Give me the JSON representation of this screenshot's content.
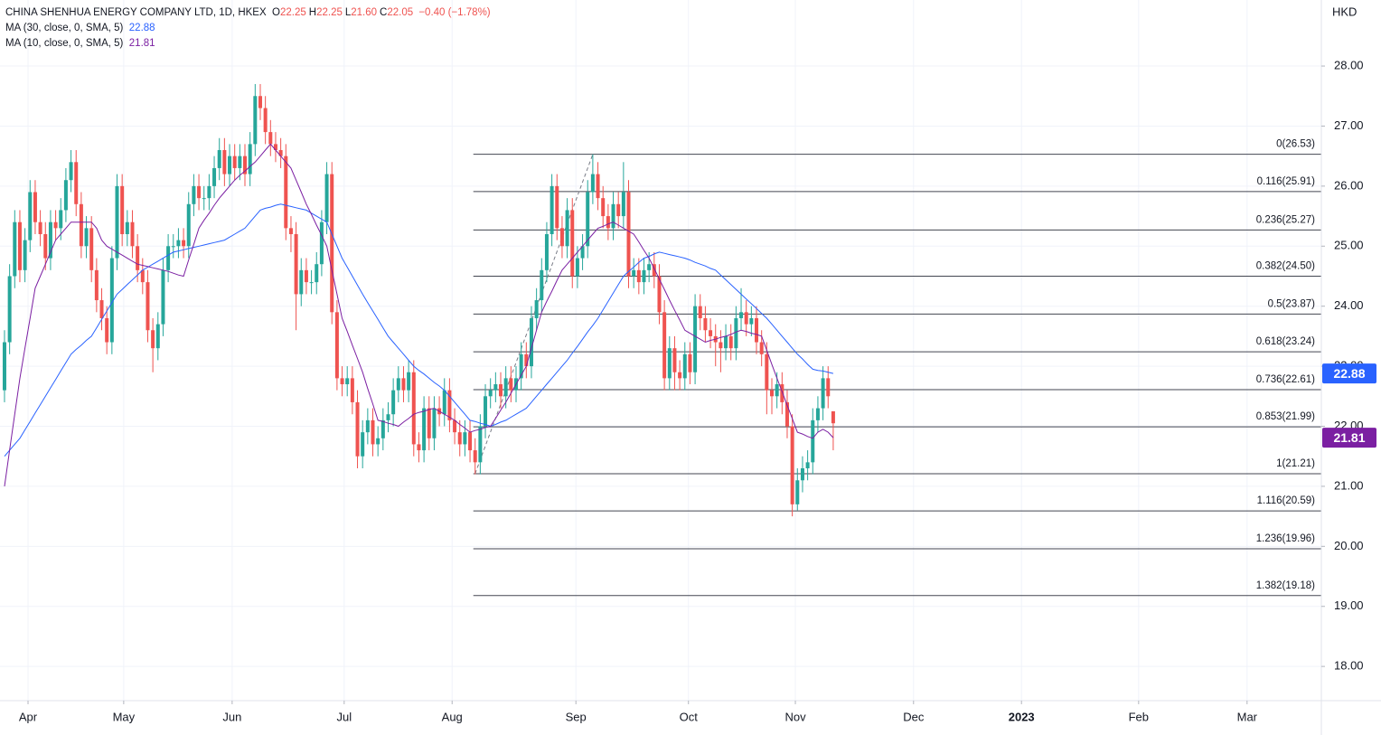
{
  "chart_data": {
    "type": "candlestick",
    "title": "CHINA SHENHUA ENERGY COMPANY LTD, 1D, HKEX",
    "ohlc_legend": [
      {
        "key": "O",
        "value": "22.25"
      },
      {
        "key": "H",
        "value": "22.25"
      },
      {
        "key": "L",
        "value": "21.60"
      },
      {
        "key": "C",
        "value": "22.05"
      }
    ],
    "change": "−0.40 (−1.78%)",
    "y_axis_unit": "HKD",
    "up_color": "#26a69a",
    "down_color": "#ef5350",
    "grid": true,
    "open": [
      22.6,
      23.4,
      24.5,
      25.4,
      24.6,
      25.1,
      25.9,
      25.4,
      25.2,
      24.8,
      25.4,
      25.3,
      25.6,
      26.1,
      26.4,
      25.7,
      25.0,
      25.3,
      24.6,
      24.1,
      23.8,
      23.4,
      24.8,
      26.0,
      25.2,
      25.4,
      25.0,
      24.6,
      24.4,
      23.6,
      23.3,
      23.7,
      24.6,
      25.0,
      25.0,
      25.1,
      25.0,
      25.7,
      26.0,
      25.8,
      25.8,
      26.0,
      26.3,
      26.6,
      26.2,
      26.5,
      26.3,
      26.5,
      26.2,
      26.7,
      27.5,
      27.3,
      26.9,
      26.7,
      26.6,
      26.5,
      25.3,
      25.2,
      24.2,
      24.6,
      24.4,
      24.4,
      24.7,
      25.4,
      26.2,
      23.9,
      22.8,
      22.7,
      22.8,
      22.4,
      21.5,
      21.9,
      22.1,
      21.7,
      21.8,
      22.1,
      22.2,
      22.6,
      22.8,
      22.6,
      22.9,
      21.7,
      21.6,
      22.3,
      21.8,
      22.3,
      22.2,
      22.6,
      22.1,
      21.9,
      21.7,
      21.9,
      21.6,
      21.4,
      22.0,
      22.5,
      22.6,
      22.7,
      22.5,
      22.8,
      22.6,
      22.8,
      23.2,
      23.0,
      23.8,
      24.1,
      24.6,
      25.2,
      26.0,
      25.3,
      25.0,
      25.6,
      24.5,
      24.8,
      25.0,
      25.9,
      26.2,
      25.8,
      25.5,
      25.3,
      25.7,
      25.5,
      25.9,
      24.5,
      24.6,
      24.4,
      24.6,
      24.7,
      24.5,
      23.9,
      22.8,
      23.3,
      22.9,
      22.8,
      23.2,
      22.9,
      24.0,
      23.8,
      23.6,
      23.5,
      23.4,
      23.3,
      23.5,
      23.3,
      23.8,
      23.9,
      23.7,
      23.8,
      23.4,
      23.2,
      22.6,
      22.5,
      22.7,
      22.4,
      22.0,
      20.7,
      21.1,
      21.3,
      21.4,
      22.1,
      22.3,
      22.8,
      22.25
    ],
    "high": [
      23.6,
      24.7,
      25.6,
      25.6,
      25.3,
      26.1,
      26.1,
      25.6,
      25.4,
      25.6,
      25.6,
      25.8,
      26.3,
      26.6,
      26.6,
      25.9,
      25.5,
      25.5,
      24.8,
      24.3,
      24.0,
      25.0,
      26.2,
      26.2,
      25.6,
      25.6,
      25.2,
      24.8,
      24.6,
      23.8,
      23.9,
      24.8,
      25.2,
      25.2,
      25.3,
      25.3,
      25.9,
      26.2,
      26.2,
      26.0,
      26.2,
      26.5,
      26.8,
      26.8,
      26.7,
      26.7,
      26.7,
      26.7,
      26.9,
      27.7,
      27.7,
      27.5,
      27.1,
      26.9,
      26.8,
      26.7,
      25.5,
      25.4,
      24.8,
      24.8,
      24.6,
      24.9,
      25.6,
      26.4,
      26.4,
      24.1,
      23.0,
      23.0,
      23.0,
      22.6,
      22.1,
      22.3,
      22.3,
      22.0,
      22.3,
      22.4,
      22.8,
      23.0,
      23.0,
      23.1,
      23.1,
      21.9,
      22.5,
      22.5,
      22.5,
      22.5,
      22.8,
      22.8,
      22.3,
      22.1,
      22.1,
      22.1,
      21.8,
      22.2,
      22.7,
      22.8,
      22.9,
      22.9,
      23.0,
      23.0,
      23.0,
      23.4,
      23.4,
      24.0,
      24.3,
      24.8,
      25.4,
      26.2,
      26.2,
      25.5,
      25.8,
      25.8,
      25.0,
      25.2,
      26.1,
      26.53,
      26.4,
      26.0,
      25.7,
      25.9,
      25.9,
      26.4,
      26.1,
      24.8,
      24.8,
      24.8,
      24.9,
      24.9,
      24.7,
      24.1,
      23.5,
      23.5,
      23.1,
      23.4,
      23.4,
      24.2,
      24.2,
      24.0,
      23.8,
      23.7,
      23.6,
      23.7,
      23.7,
      24.0,
      24.3,
      24.1,
      24.0,
      24.0,
      23.6,
      23.4,
      22.8,
      22.9,
      22.9,
      22.6,
      22.2,
      21.3,
      21.5,
      21.6,
      22.3,
      22.5,
      23.0,
      23.0,
      22.25
    ],
    "low": [
      22.4,
      23.2,
      24.3,
      24.4,
      24.4,
      24.9,
      25.2,
      25.0,
      24.6,
      24.6,
      25.1,
      25.1,
      25.4,
      25.9,
      25.5,
      24.8,
      24.8,
      24.4,
      23.9,
      23.6,
      23.2,
      23.2,
      24.6,
      25.0,
      25.0,
      24.8,
      24.4,
      24.2,
      23.4,
      22.9,
      23.1,
      23.5,
      24.4,
      24.8,
      24.8,
      24.8,
      24.8,
      25.5,
      25.6,
      25.6,
      25.6,
      25.8,
      26.1,
      26.0,
      26.0,
      26.1,
      26.1,
      26.0,
      26.0,
      26.5,
      27.1,
      26.7,
      26.5,
      26.4,
      26.3,
      25.1,
      24.9,
      23.6,
      24.0,
      24.2,
      24.2,
      24.2,
      24.5,
      25.2,
      23.7,
      22.6,
      22.5,
      22.5,
      22.2,
      21.3,
      21.3,
      21.7,
      21.5,
      21.5,
      21.6,
      21.9,
      22.0,
      22.4,
      22.4,
      22.4,
      21.5,
      21.4,
      21.4,
      21.6,
      21.6,
      22.0,
      22.0,
      21.9,
      21.7,
      21.5,
      21.5,
      21.4,
      21.2,
      21.2,
      21.8,
      22.3,
      22.4,
      22.3,
      22.3,
      22.4,
      22.4,
      22.6,
      22.8,
      22.8,
      23.6,
      23.9,
      24.4,
      25.0,
      25.1,
      24.8,
      24.8,
      24.3,
      24.3,
      24.6,
      24.8,
      25.7,
      25.6,
      25.3,
      25.1,
      25.1,
      25.3,
      25.3,
      24.3,
      24.3,
      24.2,
      24.2,
      24.4,
      24.3,
      23.7,
      22.6,
      22.6,
      22.6,
      22.6,
      22.6,
      22.7,
      22.7,
      23.6,
      23.4,
      23.3,
      23.0,
      22.9,
      23.1,
      23.1,
      23.1,
      23.6,
      23.5,
      23.5,
      23.2,
      23.0,
      22.2,
      22.2,
      22.3,
      22.2,
      21.8,
      20.5,
      20.6,
      20.9,
      21.1,
      21.2,
      21.9,
      22.1,
      22.3,
      21.6
    ],
    "close": [
      23.4,
      24.5,
      25.4,
      24.6,
      25.1,
      25.9,
      25.4,
      25.2,
      24.8,
      25.4,
      25.3,
      25.6,
      26.1,
      26.4,
      25.7,
      25.0,
      25.3,
      24.6,
      24.1,
      23.8,
      23.4,
      24.8,
      26.0,
      25.2,
      25.4,
      25.0,
      24.6,
      24.4,
      23.6,
      23.3,
      23.7,
      24.6,
      25.0,
      25.0,
      25.1,
      25.0,
      25.7,
      26.0,
      25.8,
      25.8,
      26.0,
      26.3,
      26.6,
      26.2,
      26.5,
      26.3,
      26.5,
      26.2,
      26.7,
      27.5,
      27.3,
      26.9,
      26.7,
      26.6,
      26.5,
      25.3,
      25.2,
      24.2,
      24.6,
      24.4,
      24.4,
      24.7,
      25.4,
      26.2,
      23.9,
      22.8,
      22.7,
      22.8,
      22.4,
      21.5,
      21.9,
      22.1,
      21.7,
      21.8,
      22.1,
      22.2,
      22.6,
      22.8,
      22.6,
      22.9,
      21.7,
      21.6,
      22.3,
      21.8,
      22.3,
      22.2,
      22.6,
      22.1,
      21.9,
      21.7,
      21.9,
      21.6,
      21.4,
      22.0,
      22.5,
      22.6,
      22.7,
      22.5,
      22.8,
      22.6,
      22.8,
      23.2,
      23.0,
      23.8,
      24.1,
      24.6,
      25.2,
      26.0,
      25.3,
      25.0,
      25.6,
      24.5,
      24.8,
      25.0,
      25.9,
      26.2,
      25.8,
      25.5,
      25.3,
      25.7,
      25.5,
      25.9,
      24.5,
      24.6,
      24.4,
      24.6,
      24.7,
      24.5,
      23.9,
      22.8,
      23.3,
      22.9,
      22.8,
      23.2,
      22.9,
      24.0,
      23.8,
      23.6,
      23.5,
      23.4,
      23.3,
      23.5,
      23.3,
      23.8,
      23.9,
      23.7,
      23.8,
      23.4,
      23.2,
      22.6,
      22.5,
      22.7,
      22.4,
      22.0,
      20.7,
      21.1,
      21.3,
      21.4,
      22.1,
      22.3,
      22.8,
      22.5,
      22.05
    ],
    "series": [
      {
        "name": "MA (30, close, 0, SMA, 5)",
        "color": "#2962ff",
        "last_label": "22.88",
        "values": [
          21.5,
          21.6,
          21.7,
          21.8,
          21.94,
          22.08,
          22.22,
          22.36,
          22.5,
          22.64,
          22.78,
          22.92,
          23.06,
          23.2,
          23.28,
          23.35,
          23.43,
          23.5,
          23.64,
          23.78,
          23.92,
          24.06,
          24.2,
          24.28,
          24.36,
          24.44,
          24.52,
          24.6,
          24.65,
          24.7,
          24.75,
          24.8,
          24.85,
          24.9,
          24.92,
          24.94,
          24.96,
          24.98,
          25.0,
          25.02,
          25.04,
          25.06,
          25.08,
          25.1,
          25.15,
          25.2,
          25.25,
          25.3,
          25.4,
          25.5,
          25.6,
          25.63,
          25.65,
          25.68,
          25.7,
          25.68,
          25.66,
          25.64,
          25.62,
          25.6,
          25.55,
          25.5,
          25.45,
          25.4,
          25.2,
          25.0,
          24.8,
          24.65,
          24.5,
          24.35,
          24.2,
          24.06,
          23.92,
          23.78,
          23.64,
          23.5,
          23.4,
          23.3,
          23.2,
          23.1,
          23.0,
          22.93,
          22.87,
          22.8,
          22.73,
          22.67,
          22.6,
          22.5,
          22.4,
          22.3,
          22.2,
          22.1,
          22.08,
          22.05,
          22.03,
          22.0,
          22.03,
          22.07,
          22.1,
          22.15,
          22.2,
          22.25,
          22.3,
          22.4,
          22.5,
          22.6,
          22.7,
          22.8,
          22.9,
          23.0,
          23.1,
          23.22,
          23.33,
          23.45,
          23.57,
          23.68,
          23.8,
          23.94,
          24.08,
          24.22,
          24.36,
          24.5,
          24.58,
          24.65,
          24.73,
          24.8,
          24.83,
          24.87,
          24.9,
          24.88,
          24.86,
          24.84,
          24.82,
          24.8,
          24.77,
          24.73,
          24.7,
          24.67,
          24.63,
          24.6,
          24.52,
          24.44,
          24.36,
          24.28,
          24.2,
          24.12,
          24.04,
          23.96,
          23.88,
          23.8,
          23.7,
          23.6,
          23.5,
          23.4,
          23.3,
          23.2,
          23.12,
          23.03,
          22.95,
          22.93,
          22.92,
          22.9,
          22.88
        ]
      },
      {
        "name": "MA (10, close, 0, SMA, 5)",
        "color": "#7b1fa2",
        "last_label": "21.81",
        "values": [
          21.0,
          21.6,
          22.2,
          22.8,
          23.3,
          23.8,
          24.3,
          24.5,
          24.7,
          24.9,
          25.1,
          25.2,
          25.3,
          25.4,
          25.4,
          25.4,
          25.4,
          25.4,
          25.3,
          25.1,
          25.0,
          24.95,
          24.9,
          24.85,
          24.8,
          24.75,
          24.7,
          24.68,
          24.66,
          24.64,
          24.62,
          24.6,
          24.58,
          24.55,
          24.52,
          24.5,
          24.77,
          25.03,
          25.3,
          25.43,
          25.55,
          25.68,
          25.8,
          25.9,
          26.0,
          26.1,
          26.18,
          26.25,
          26.33,
          26.4,
          26.5,
          26.6,
          26.7,
          26.6,
          26.5,
          26.4,
          26.3,
          26.1,
          25.9,
          25.7,
          25.53,
          25.35,
          25.18,
          25.0,
          24.6,
          24.2,
          23.8,
          23.58,
          23.35,
          23.13,
          22.9,
          22.63,
          22.37,
          22.1,
          22.08,
          22.05,
          22.03,
          22.0,
          22.07,
          22.13,
          22.2,
          22.23,
          22.25,
          22.28,
          22.3,
          22.25,
          22.2,
          22.15,
          22.1,
          22.03,
          21.97,
          21.9,
          21.93,
          21.95,
          21.98,
          22.0,
          22.13,
          22.27,
          22.4,
          22.55,
          22.7,
          22.85,
          23.0,
          23.3,
          23.6,
          23.9,
          24.08,
          24.25,
          24.43,
          24.6,
          24.7,
          24.8,
          24.9,
          25.0,
          25.1,
          25.2,
          25.3,
          25.33,
          25.37,
          25.4,
          25.35,
          25.3,
          25.25,
          25.2,
          25.07,
          24.93,
          24.8,
          24.63,
          24.45,
          24.28,
          24.1,
          23.93,
          23.77,
          23.6,
          23.55,
          23.5,
          23.45,
          23.4,
          23.43,
          23.45,
          23.48,
          23.5,
          23.53,
          23.57,
          23.6,
          23.58,
          23.55,
          23.53,
          23.5,
          23.27,
          23.03,
          22.8,
          22.58,
          22.35,
          22.13,
          21.9,
          21.87,
          21.83,
          21.8,
          21.9,
          21.95,
          21.9,
          21.81
        ]
      }
    ],
    "fib_color": "#434651",
    "fib_levels": [
      {
        "value": 26.53,
        "label": "0(26.53)"
      },
      {
        "value": 25.91,
        "label": "0.116(25.91)"
      },
      {
        "value": 25.27,
        "label": "0.236(25.27)"
      },
      {
        "value": 24.5,
        "label": "0.382(24.50)"
      },
      {
        "value": 23.87,
        "label": "0.5(23.87)"
      },
      {
        "value": 23.24,
        "label": "0.618(23.24)"
      },
      {
        "value": 22.61,
        "label": "0.736(22.61)"
      },
      {
        "value": 21.99,
        "label": "0.853(21.99)"
      },
      {
        "value": 21.21,
        "label": "1(21.21)"
      },
      {
        "value": 20.59,
        "label": "1.116(20.59)"
      },
      {
        "value": 19.96,
        "label": "1.236(19.96)"
      },
      {
        "value": 19.18,
        "label": "1.382(19.18)"
      }
    ],
    "ylim": [
      17.43,
      29.1
    ],
    "yticks": [
      {
        "value": 18,
        "label": "18.00"
      },
      {
        "value": 19,
        "label": "19.00"
      },
      {
        "value": 20,
        "label": "20.00"
      },
      {
        "value": 21,
        "label": "21.00"
      },
      {
        "value": 22,
        "label": "22.00"
      },
      {
        "value": 23,
        "label": "23.00"
      },
      {
        "value": 24,
        "label": "24.00"
      },
      {
        "value": 25,
        "label": "25.00"
      },
      {
        "value": 26,
        "label": "26.00"
      },
      {
        "value": 27,
        "label": "27.00"
      },
      {
        "value": 28,
        "label": "28.00"
      }
    ],
    "xlim": [
      -0.88,
      257.42
    ],
    "xticks": [
      {
        "value": 4.6,
        "label": "Apr"
      },
      {
        "value": 23.3,
        "label": "May"
      },
      {
        "value": 44.5,
        "label": "Jun"
      },
      {
        "value": 66.4,
        "label": "Jul"
      },
      {
        "value": 87.5,
        "label": "Aug"
      },
      {
        "value": 111.7,
        "label": "Sep"
      },
      {
        "value": 133.7,
        "label": "Oct"
      },
      {
        "value": 154.6,
        "label": "Nov"
      },
      {
        "value": 177.7,
        "label": "Dec"
      },
      {
        "value": 198.8,
        "label": "2023",
        "bold": true
      },
      {
        "value": 221.7,
        "label": "Feb"
      },
      {
        "value": 242.9,
        "label": "Mar"
      }
    ]
  }
}
